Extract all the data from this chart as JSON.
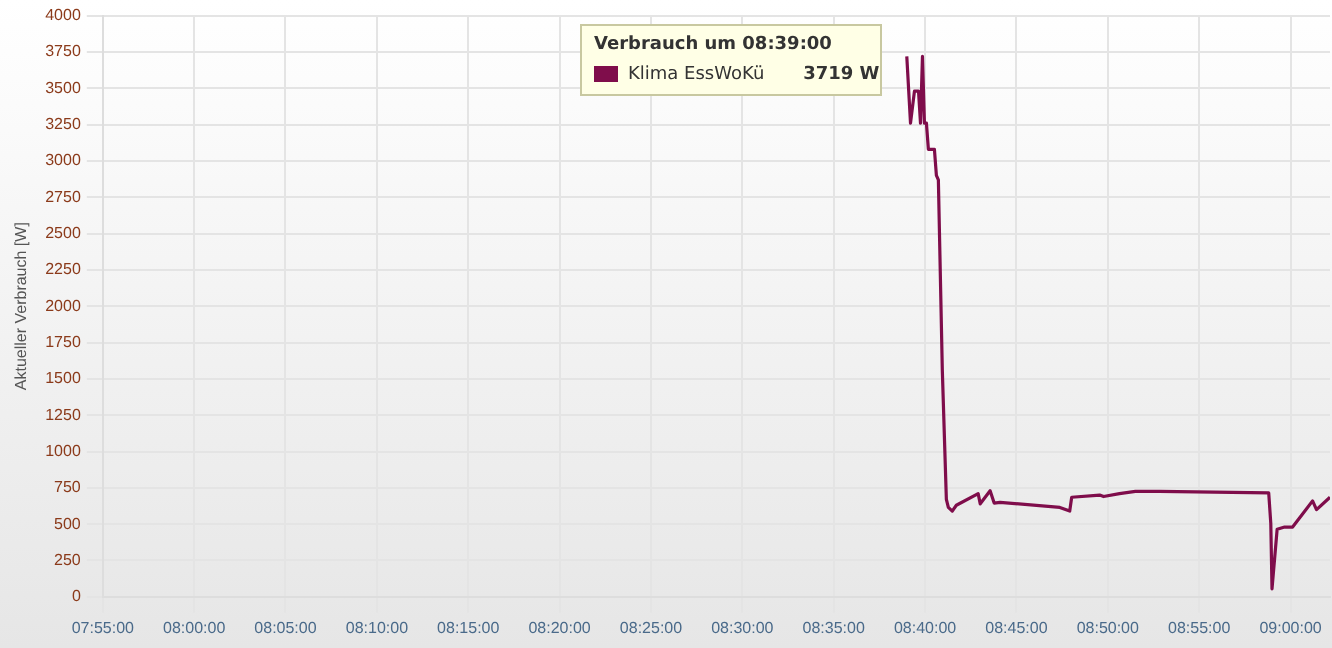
{
  "chart_data": {
    "type": "line",
    "ylabel": "Aktueller Verbrauch [W]",
    "legend_title": "Verbrauch um 08:39:00",
    "annotations": [
      "3719 W"
    ],
    "xlim": [
      7.9167,
      9.036
    ],
    "ylim": [
      0,
      4000
    ],
    "xticks": [
      {
        "value": 7.9167,
        "label": "07:55:00"
      },
      {
        "value": 8,
        "label": "08:00:00"
      },
      {
        "value": 8.0833,
        "label": "08:05:00"
      },
      {
        "value": 8.1667,
        "label": "08:10:00"
      },
      {
        "value": 8.25,
        "label": "08:15:00"
      },
      {
        "value": 8.3333,
        "label": "08:20:00"
      },
      {
        "value": 8.4167,
        "label": "08:25:00"
      },
      {
        "value": 8.5,
        "label": "08:30:00"
      },
      {
        "value": 8.5833,
        "label": "08:35:00"
      },
      {
        "value": 8.6667,
        "label": "08:40:00"
      },
      {
        "value": 8.75,
        "label": "08:45:00"
      },
      {
        "value": 8.8333,
        "label": "08:50:00"
      },
      {
        "value": 8.9167,
        "label": "08:55:00"
      },
      {
        "value": 9,
        "label": "09:00:00"
      }
    ],
    "yticks": [
      0,
      250,
      500,
      750,
      1000,
      1250,
      1500,
      1750,
      2000,
      2250,
      2500,
      2750,
      3000,
      3250,
      3500,
      3750,
      4000
    ],
    "grid": true,
    "legend": "top",
    "marker": "none",
    "line_style": "solid",
    "x": [
      8.65,
      8.6534,
      8.657,
      8.6607,
      8.6625,
      8.6643,
      8.6661,
      8.6679,
      8.6697,
      8.6752,
      8.677,
      8.6788,
      8.6824,
      8.6861,
      8.6879,
      8.6915,
      8.6952,
      8.7151,
      8.717,
      8.726,
      8.7297,
      8.7351,
      8.7896,
      8.7986,
      8.8004,
      8.8259,
      8.8295,
      8.844,
      8.8585,
      8.8803,
      8.9801,
      8.982,
      8.9831,
      8.9878,
      8.9946,
      9.0019,
      9.0201,
      9.0237,
      9.036
    ],
    "series": [
      {
        "name": "Klima EssWoKü",
        "color": "#7f0d4b",
        "values": [
          3719,
          3260,
          3480,
          3480,
          3260,
          3719,
          3260,
          3260,
          3080,
          3080,
          2900,
          2870,
          1560,
          670,
          615,
          590,
          630,
          710,
          640,
          730,
          645,
          650,
          615,
          590,
          685,
          700,
          690,
          710,
          725,
          725,
          715,
          505,
          55,
          465,
          480,
          480,
          660,
          600,
          685
        ]
      }
    ]
  }
}
